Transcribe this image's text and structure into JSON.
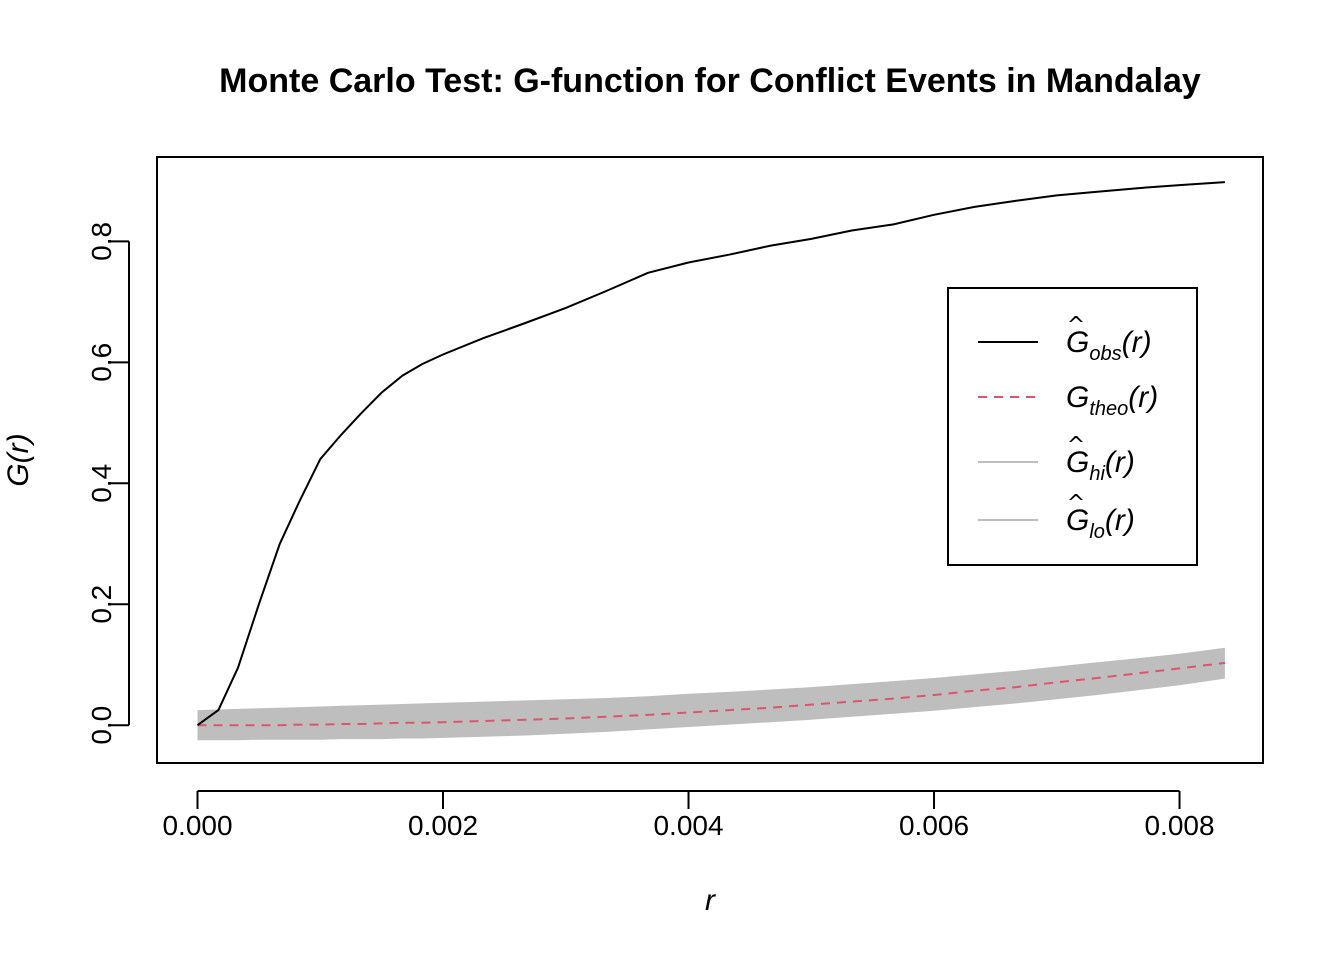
{
  "chart_data": {
    "type": "line",
    "title": "Monte Carlo Test: G-function for Conflict Events in Mandalay",
    "xlabel": "r",
    "ylabel": "G(r)",
    "xlim": [
      -0.00033,
      0.00868
    ],
    "ylim": [
      -0.0625,
      0.9395
    ],
    "xticks": [
      0.0,
      0.002,
      0.004,
      0.006,
      0.008
    ],
    "xtick_labels": [
      "0.000",
      "0.002",
      "0.004",
      "0.006",
      "0.008"
    ],
    "yticks": [
      0.0,
      0.2,
      0.4,
      0.6,
      0.8
    ],
    "ytick_labels": [
      "0.0",
      "0.2",
      "0.4",
      "0.6",
      "0.8"
    ],
    "grid": false,
    "legend_position": "right",
    "x": [
      0.0,
      0.00017,
      0.00033,
      0.0005,
      0.00067,
      0.00083,
      0.001,
      0.00117,
      0.00133,
      0.0015,
      0.00167,
      0.00183,
      0.002,
      0.00233,
      0.00267,
      0.003,
      0.00333,
      0.00367,
      0.004,
      0.00433,
      0.00467,
      0.005,
      0.00533,
      0.00567,
      0.006,
      0.00633,
      0.00667,
      0.007,
      0.00733,
      0.00767,
      0.008,
      0.00837
    ],
    "series": [
      {
        "name": "obs",
        "legend": {
          "base": "G",
          "hat": true,
          "sub": "obs",
          "suffix": "(r)"
        },
        "color": "#000000",
        "dash": "solid",
        "values": [
          0.0,
          0.025,
          0.095,
          0.2,
          0.3,
          0.37,
          0.44,
          0.48,
          0.515,
          0.55,
          0.578,
          0.597,
          0.613,
          0.64,
          0.665,
          0.69,
          0.718,
          0.748,
          0.765,
          0.778,
          0.793,
          0.804,
          0.818,
          0.828,
          0.844,
          0.857,
          0.867,
          0.876,
          0.882,
          0.888,
          0.893,
          0.898
        ]
      },
      {
        "name": "theo",
        "legend": {
          "base": "G",
          "hat": false,
          "sub": "theo",
          "suffix": "(r)"
        },
        "color": "#DF536B",
        "dash": "dashed",
        "values": [
          0.0,
          0.0,
          0.0,
          0.0,
          0.0,
          0.001,
          0.001,
          0.002,
          0.002,
          0.003,
          0.004,
          0.004,
          0.005,
          0.007,
          0.009,
          0.011,
          0.014,
          0.017,
          0.021,
          0.025,
          0.029,
          0.034,
          0.039,
          0.044,
          0.05,
          0.057,
          0.063,
          0.071,
          0.078,
          0.086,
          0.094,
          0.103
        ]
      },
      {
        "name": "hi",
        "legend": {
          "base": "G",
          "hat": true,
          "sub": "hi",
          "suffix": "(r)"
        },
        "color": "#BEBEBE",
        "dash": "solid",
        "values": [
          0.025,
          0.026,
          0.027,
          0.028,
          0.029,
          0.03,
          0.031,
          0.032,
          0.033,
          0.034,
          0.035,
          0.036,
          0.037,
          0.039,
          0.041,
          0.043,
          0.045,
          0.048,
          0.052,
          0.055,
          0.059,
          0.063,
          0.068,
          0.073,
          0.078,
          0.084,
          0.09,
          0.097,
          0.104,
          0.111,
          0.118,
          0.128
        ]
      },
      {
        "name": "lo",
        "legend": {
          "base": "G",
          "hat": true,
          "sub": "lo",
          "suffix": "(r)"
        },
        "color": "#BEBEBE",
        "dash": "solid",
        "values": [
          -0.025,
          -0.025,
          -0.025,
          -0.024,
          -0.024,
          -0.024,
          -0.024,
          -0.023,
          -0.023,
          -0.023,
          -0.022,
          -0.022,
          -0.021,
          -0.019,
          -0.017,
          -0.014,
          -0.011,
          -0.007,
          -0.003,
          0.001,
          0.005,
          0.009,
          0.014,
          0.019,
          0.024,
          0.03,
          0.036,
          0.043,
          0.05,
          0.058,
          0.066,
          0.077
        ]
      }
    ]
  }
}
